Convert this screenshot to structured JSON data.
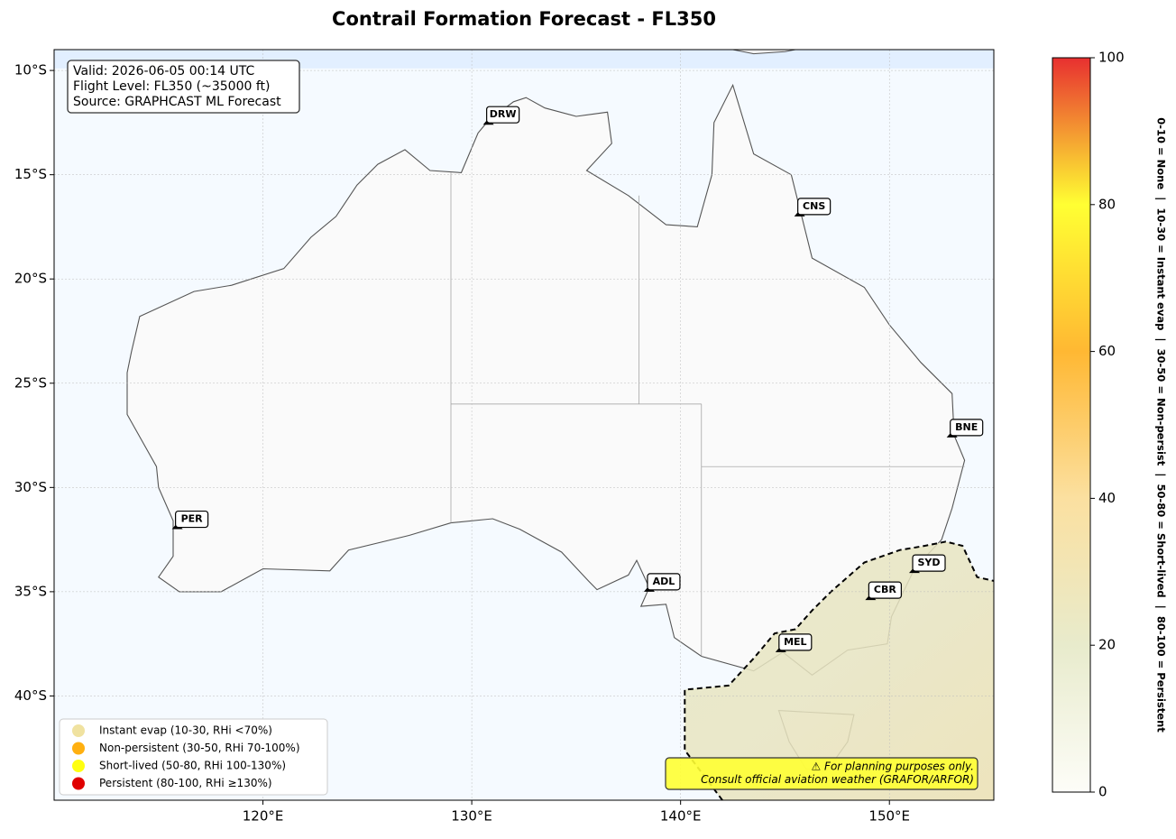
{
  "title": "Contrail Formation Forecast - FL350",
  "map": {
    "xlim": [
      110,
      155
    ],
    "ylim": [
      -45,
      -9
    ],
    "xticks": [
      {
        "value": 120,
        "label": "120°E"
      },
      {
        "value": 130,
        "label": "130°E"
      },
      {
        "value": 140,
        "label": "140°E"
      },
      {
        "value": 150,
        "label": "150°E"
      }
    ],
    "yticks": [
      {
        "value": -10,
        "label": "10°S"
      },
      {
        "value": -15,
        "label": "15°S"
      },
      {
        "value": -20,
        "label": "20°S"
      },
      {
        "value": -25,
        "label": "25°S"
      },
      {
        "value": -30,
        "label": "30°S"
      },
      {
        "value": -35,
        "label": "35°S"
      },
      {
        "value": -40,
        "label": "40°S"
      }
    ],
    "grid": true
  },
  "info": [
    "Valid: 2026-06-05 00:14 UTC",
    "Flight Level: FL350 (~35000 ft)",
    "Source: GRAPHCAST ML Forecast"
  ],
  "airports": [
    "DRW",
    "CNS",
    "BNE",
    "PER",
    "ADL",
    "SYD",
    "CBR",
    "MEL"
  ],
  "legend": [
    {
      "name": "Instant evap (10-30, RHi <70%)",
      "color": "#f0e2a0"
    },
    {
      "name": "Non-persistent (30-50, RHi 70-100%)",
      "color": "#ffb010"
    },
    {
      "name": "Short-lived (50-80, RHi 100-130%)",
      "color": "#ffff10"
    },
    {
      "name": "Persistent (80-100, RHi ≥130%)",
      "color": "#e00000"
    }
  ],
  "note": [
    "⚠ For planning purposes only.",
    "Consult official aviation weather (GRAFOR/ARFOR)"
  ],
  "colorbar": {
    "lim": [
      0,
      100
    ],
    "ticks": [
      0,
      20,
      40,
      60,
      80,
      100
    ],
    "colors": [
      "#fdfdf8",
      "#e8ebcc",
      "#fbe0a0",
      "#ffb833",
      "#ffff33",
      "#e83030"
    ],
    "label": "0-10 = None  |  10-30 = Instant evap  |  30-50 = Non-persist  |  50-80 = Short-lived  |  80-100 = Persistent"
  }
}
